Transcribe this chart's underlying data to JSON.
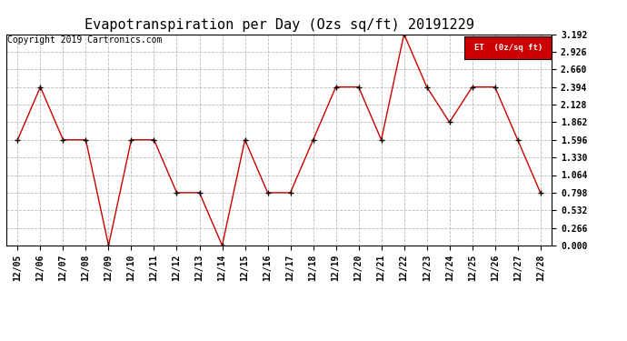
{
  "title": "Evapotranspiration per Day (Ozs sq/ft) 20191229",
  "copyright": "Copyright 2019 Cartronics.com",
  "legend_label": "ET  (0z/sq ft)",
  "dates": [
    "12/05",
    "12/06",
    "12/07",
    "12/08",
    "12/09",
    "12/10",
    "12/11",
    "12/12",
    "12/13",
    "12/14",
    "12/15",
    "12/16",
    "12/17",
    "12/18",
    "12/19",
    "12/20",
    "12/21",
    "12/22",
    "12/23",
    "12/24",
    "12/25",
    "12/26",
    "12/27",
    "12/28"
  ],
  "values": [
    1.596,
    2.394,
    1.596,
    1.596,
    0.0,
    1.596,
    1.596,
    0.798,
    0.798,
    0.0,
    1.596,
    0.798,
    0.798,
    1.596,
    2.394,
    2.394,
    1.596,
    3.192,
    2.394,
    1.862,
    2.394,
    2.394,
    1.596,
    0.798
  ],
  "ylim": [
    0.0,
    3.192
  ],
  "yticks": [
    0.0,
    0.266,
    0.532,
    0.798,
    1.064,
    1.33,
    1.596,
    1.862,
    2.128,
    2.394,
    2.66,
    2.926,
    3.192
  ],
  "line_color": "#cc0000",
  "marker_color": "#000000",
  "background_color": "#ffffff",
  "grid_color": "#bbbbbb",
  "legend_bg": "#cc0000",
  "legend_text_color": "#ffffff",
  "title_fontsize": 11,
  "tick_fontsize": 7,
  "copyright_fontsize": 7
}
